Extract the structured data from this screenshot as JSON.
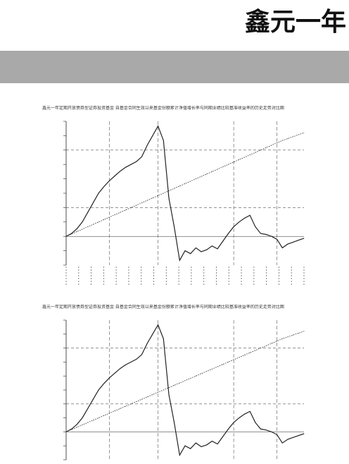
{
  "header": {
    "title": "鑫元一年"
  },
  "charts": [
    {
      "title": "鑫元一年定期开放债券型证券投资基金  自基金合同生效以来基金份额累计净值增长率与同期业绩比较基准收益率的历史走势对比图"
    },
    {
      "title": "鑫元一年定期开放债券型证券投资基金  自基金合同生效以来基金份额累计净值增长率与同期业绩比较基准收益率的历史走势对比图"
    }
  ],
  "chart_data": [
    {
      "type": "line",
      "ylim": [
        -3,
        12
      ],
      "x_ticks": [
        "",
        "",
        "",
        "",
        "",
        "",
        "",
        "",
        "",
        "",
        "",
        "",
        "",
        "",
        "",
        "",
        "",
        "",
        "",
        ""
      ],
      "series": [
        {
          "values": [
            0,
            0.3,
            0.8,
            1.5,
            2.5,
            3.5,
            4.5,
            5.2,
            5.8,
            6.3,
            6.8,
            7.2,
            7.5,
            7.8,
            8.3,
            9.5,
            10.5,
            11.5,
            10,
            4,
            1,
            -2.5,
            -1.5,
            -1.8,
            -1.2,
            -1.6,
            -1.4,
            -1.0,
            -1.3,
            -0.5,
            0.3,
            1.0,
            1.5,
            1.9,
            2.2,
            1.0,
            0.3,
            0.2,
            0,
            -0.3,
            -1.2,
            -0.8,
            -0.6,
            -0.4,
            -0.2
          ]
        },
        {
          "values": [
            0,
            0.25,
            0.5,
            0.75,
            1.0,
            1.25,
            1.5,
            1.75,
            2.0,
            2.25,
            2.5,
            2.75,
            3.0,
            3.25,
            3.5,
            3.75,
            4.0,
            4.25,
            4.5,
            4.75,
            5.0,
            5.25,
            5.5,
            5.75,
            6.0,
            6.25,
            6.5,
            6.75,
            7.0,
            7.25,
            7.5,
            7.75,
            8.0,
            8.25,
            8.5,
            8.75,
            9.0,
            9.25,
            9.5,
            9.75,
            10.0,
            10.2,
            10.4,
            10.6,
            10.8
          ]
        }
      ],
      "vlines": [
        8,
        17,
        31,
        39
      ],
      "hlines": [
        3,
        9
      ]
    },
    {
      "type": "line",
      "ylim": [
        -3,
        12
      ],
      "series": [
        {
          "values": [
            0,
            0.3,
            0.8,
            1.5,
            2.5,
            3.5,
            4.5,
            5.2,
            5.8,
            6.3,
            6.8,
            7.2,
            7.5,
            7.8,
            8.3,
            9.5,
            10.5,
            11.5,
            10,
            4,
            1,
            -2.5,
            -1.5,
            -1.8,
            -1.2,
            -1.6,
            -1.4,
            -1.0,
            -1.3,
            -0.5,
            0.3,
            1.0,
            1.5,
            1.9,
            2.2,
            1.0,
            0.3,
            0.2,
            0,
            -0.3,
            -1.2,
            -0.8,
            -0.6,
            -0.4,
            -0.2
          ]
        },
        {
          "values": [
            0,
            0.25,
            0.5,
            0.75,
            1.0,
            1.25,
            1.5,
            1.75,
            2.0,
            2.25,
            2.5,
            2.75,
            3.0,
            3.25,
            3.5,
            3.75,
            4.0,
            4.25,
            4.5,
            4.75,
            5.0,
            5.25,
            5.5,
            5.75,
            6.0,
            6.25,
            6.5,
            6.75,
            7.0,
            7.25,
            7.5,
            7.75,
            8.0,
            8.25,
            8.5,
            8.75,
            9.0,
            9.25,
            9.5,
            9.75,
            10.0,
            10.2,
            10.4,
            10.6,
            10.8
          ]
        }
      ],
      "vlines": [
        8,
        17,
        31,
        39
      ],
      "hlines": [
        3,
        9
      ]
    }
  ],
  "colors": {
    "line": "#222222",
    "guide": "#555555",
    "bar": "#a9a9a9"
  }
}
